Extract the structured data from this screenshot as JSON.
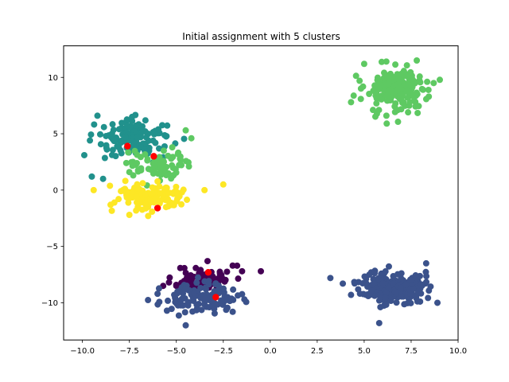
{
  "chart_data": {
    "type": "scatter",
    "title": "Initial assignment with 5 clusters",
    "xlabel": "",
    "ylabel": "",
    "xlim": [
      -11.0,
      10.0
    ],
    "ylim": [
      -13.3,
      12.8
    ],
    "xticks": [
      -10.0,
      -7.5,
      -5.0,
      -2.5,
      0.0,
      2.5,
      5.0,
      7.5,
      10.0
    ],
    "xtick_labels": [
      "−10.0",
      "−7.5",
      "−5.0",
      "−2.5",
      "0.0",
      "2.5",
      "5.0",
      "7.5",
      "10.0"
    ],
    "yticks": [
      -10,
      -5,
      0,
      5,
      10
    ],
    "ytick_labels": [
      "−10",
      "−5",
      "0",
      "5",
      "10"
    ],
    "grid": false,
    "legend": "none",
    "clusters": [
      {
        "color": "#440154",
        "center": [
          -3.5,
          -7.8
        ],
        "spread": [
          0.75,
          0.55
        ],
        "count": 70,
        "seed": 11,
        "extra": [
          [
            -0.5,
            -7.2
          ],
          [
            -1.5,
            -7.2
          ],
          [
            -2.0,
            -6.7
          ],
          [
            -5.7,
            -8.5
          ],
          [
            -5.0,
            -8.5
          ]
        ]
      },
      {
        "color": "#3b528b",
        "center": [
          -3.8,
          -9.6
        ],
        "spread": [
          1.0,
          0.6
        ],
        "count": 120,
        "seed": 23,
        "extra": [
          [
            -4.5,
            -12.0
          ],
          [
            -5.5,
            -10.7
          ],
          [
            -2.0,
            -10.8
          ],
          [
            -6.0,
            -9.2
          ]
        ]
      },
      {
        "color": "#3b528b",
        "center": [
          6.5,
          -8.6
        ],
        "spread": [
          0.85,
          0.75
        ],
        "count": 200,
        "seed": 37,
        "extra": [
          [
            3.2,
            -7.8
          ],
          [
            5.8,
            -11.8
          ],
          [
            8.9,
            -10.0
          ],
          [
            8.3,
            -6.5
          ],
          [
            4.3,
            -9.3
          ]
        ]
      },
      {
        "color": "#21918c",
        "center": [
          -7.2,
          4.6
        ],
        "spread": [
          1.0,
          0.85
        ],
        "count": 130,
        "seed": 41,
        "extra": [
          [
            -9.9,
            3.1
          ],
          [
            -9.2,
            6.6
          ],
          [
            -9.6,
            4.4
          ],
          [
            -9.5,
            1.2
          ],
          [
            -8.9,
            1.0
          ]
        ]
      },
      {
        "color": "#5ec962",
        "center": [
          6.7,
          8.9
        ],
        "spread": [
          0.85,
          1.0
        ],
        "count": 200,
        "seed": 53,
        "extra": [
          [
            4.3,
            7.8
          ],
          [
            6.2,
            5.9
          ],
          [
            8.7,
            9.5
          ],
          [
            5.0,
            11.2
          ],
          [
            7.8,
            11.5
          ]
        ]
      },
      {
        "color": "#5ec962",
        "center": [
          -6.0,
          2.3
        ],
        "spread": [
          0.9,
          0.8
        ],
        "count": 75,
        "seed": 61,
        "extra": [
          [
            -4.5,
            5.3
          ],
          [
            -4.2,
            4.6
          ],
          [
            -7.5,
            1.6
          ]
        ]
      },
      {
        "color": "#fde725",
        "center": [
          -6.3,
          -0.6
        ],
        "spread": [
          1.0,
          0.6
        ],
        "count": 140,
        "seed": 71,
        "extra": [
          [
            -2.5,
            0.5
          ],
          [
            -3.5,
            0.0
          ],
          [
            -9.4,
            0.0
          ],
          [
            -8.5,
            -1.3
          ],
          [
            -6.5,
            -2.3
          ],
          [
            -7.5,
            -2.2
          ]
        ]
      }
    ],
    "centroids": {
      "color": "#ff0000",
      "points": [
        [
          -7.6,
          3.9
        ],
        [
          -6.2,
          3.0
        ],
        [
          -6.0,
          -1.6
        ],
        [
          -3.3,
          -7.3
        ],
        [
          -2.9,
          -9.5
        ]
      ]
    }
  }
}
